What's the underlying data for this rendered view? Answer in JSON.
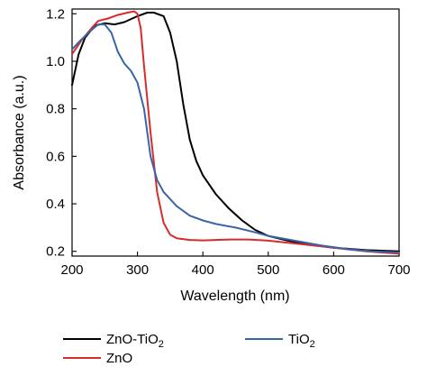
{
  "chart_data": {
    "type": "line",
    "title": "",
    "xlabel": "Wavelength (nm)",
    "ylabel": "Absorbance (a.u.)",
    "xlim": [
      200,
      700
    ],
    "ylim": [
      0.18,
      1.22
    ],
    "x_ticks": [
      200,
      300,
      400,
      500,
      600,
      700
    ],
    "y_ticks": [
      0.2,
      0.4,
      0.6,
      0.8,
      1.0,
      1.2
    ],
    "x_tick_labels": [
      "200",
      "300",
      "400",
      "500",
      "600",
      "700"
    ],
    "y_tick_labels": [
      "0.2",
      "0.4",
      "0.6",
      "0.8",
      "1.0",
      "1.2"
    ],
    "grid": false,
    "legend_position": "bottom",
    "series": [
      {
        "name": "ZnO-TiO",
        "subscript": "2",
        "color": "#000000",
        "points": [
          [
            200,
            0.9
          ],
          [
            210,
            1.03
          ],
          [
            220,
            1.1
          ],
          [
            235,
            1.15
          ],
          [
            250,
            1.16
          ],
          [
            265,
            1.155
          ],
          [
            280,
            1.165
          ],
          [
            300,
            1.19
          ],
          [
            315,
            1.205
          ],
          [
            325,
            1.205
          ],
          [
            340,
            1.19
          ],
          [
            350,
            1.12
          ],
          [
            360,
            1.0
          ],
          [
            370,
            0.82
          ],
          [
            380,
            0.67
          ],
          [
            390,
            0.58
          ],
          [
            400,
            0.52
          ],
          [
            420,
            0.44
          ],
          [
            440,
            0.38
          ],
          [
            460,
            0.33
          ],
          [
            480,
            0.29
          ],
          [
            500,
            0.265
          ],
          [
            530,
            0.245
          ],
          [
            560,
            0.23
          ],
          [
            600,
            0.215
          ],
          [
            650,
            0.205
          ],
          [
            700,
            0.2
          ]
        ]
      },
      {
        "name": "ZnO",
        "subscript": "",
        "color": "#d62c2c",
        "points": [
          [
            200,
            1.03
          ],
          [
            215,
            1.09
          ],
          [
            230,
            1.14
          ],
          [
            240,
            1.17
          ],
          [
            255,
            1.18
          ],
          [
            270,
            1.195
          ],
          [
            285,
            1.205
          ],
          [
            295,
            1.21
          ],
          [
            300,
            1.2
          ],
          [
            305,
            1.14
          ],
          [
            310,
            0.98
          ],
          [
            320,
            0.7
          ],
          [
            330,
            0.45
          ],
          [
            340,
            0.32
          ],
          [
            350,
            0.27
          ],
          [
            360,
            0.255
          ],
          [
            380,
            0.248
          ],
          [
            400,
            0.246
          ],
          [
            440,
            0.25
          ],
          [
            470,
            0.25
          ],
          [
            500,
            0.245
          ],
          [
            550,
            0.23
          ],
          [
            600,
            0.215
          ],
          [
            650,
            0.2
          ],
          [
            700,
            0.19
          ]
        ]
      },
      {
        "name": "TiO",
        "subscript": "2",
        "color": "#3a64a8",
        "points": [
          [
            200,
            1.05
          ],
          [
            210,
            1.08
          ],
          [
            225,
            1.12
          ],
          [
            240,
            1.155
          ],
          [
            250,
            1.155
          ],
          [
            260,
            1.12
          ],
          [
            270,
            1.04
          ],
          [
            280,
            0.99
          ],
          [
            290,
            0.96
          ],
          [
            300,
            0.91
          ],
          [
            310,
            0.8
          ],
          [
            320,
            0.6
          ],
          [
            330,
            0.5
          ],
          [
            340,
            0.45
          ],
          [
            360,
            0.39
          ],
          [
            380,
            0.35
          ],
          [
            400,
            0.33
          ],
          [
            420,
            0.315
          ],
          [
            450,
            0.3
          ],
          [
            480,
            0.28
          ],
          [
            500,
            0.265
          ],
          [
            540,
            0.245
          ],
          [
            580,
            0.225
          ],
          [
            620,
            0.21
          ],
          [
            660,
            0.2
          ],
          [
            700,
            0.195
          ]
        ]
      }
    ]
  }
}
